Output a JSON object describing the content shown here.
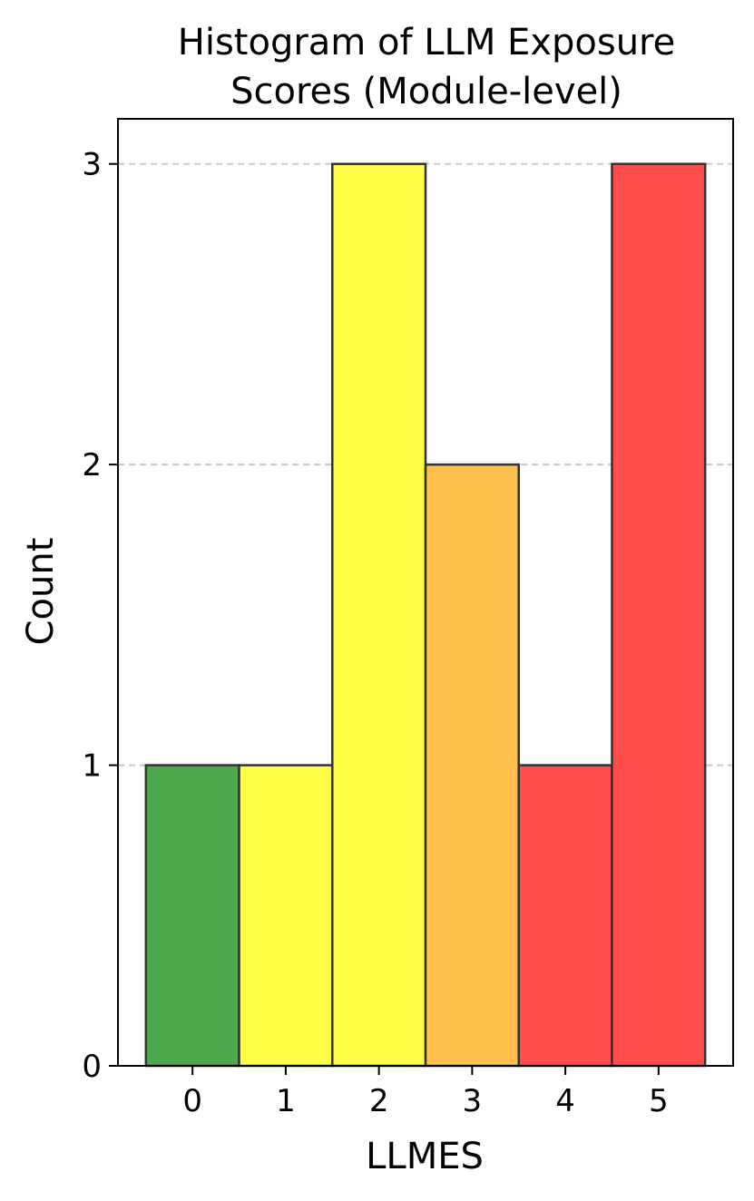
{
  "chart_data": {
    "type": "bar",
    "title_lines": [
      "Histogram of LLM Exposure",
      "Scores (Module-level)"
    ],
    "xlabel": "LLMES",
    "ylabel": "Count",
    "categories": [
      "0",
      "1",
      "2",
      "3",
      "4",
      "5"
    ],
    "values": [
      1,
      1,
      3,
      2,
      1,
      3
    ],
    "bar_colors": [
      "#4ea64d",
      "#ffff47",
      "#ffff47",
      "#ffbf4d",
      "#ff4d4d",
      "#ff4d4d"
    ],
    "edge_color": "#333333",
    "ylim": [
      0,
      3.15
    ],
    "xlim": [
      -0.8,
      5.8
    ],
    "yticks": [
      0,
      1,
      2,
      3
    ],
    "grid": "y-dashed"
  }
}
